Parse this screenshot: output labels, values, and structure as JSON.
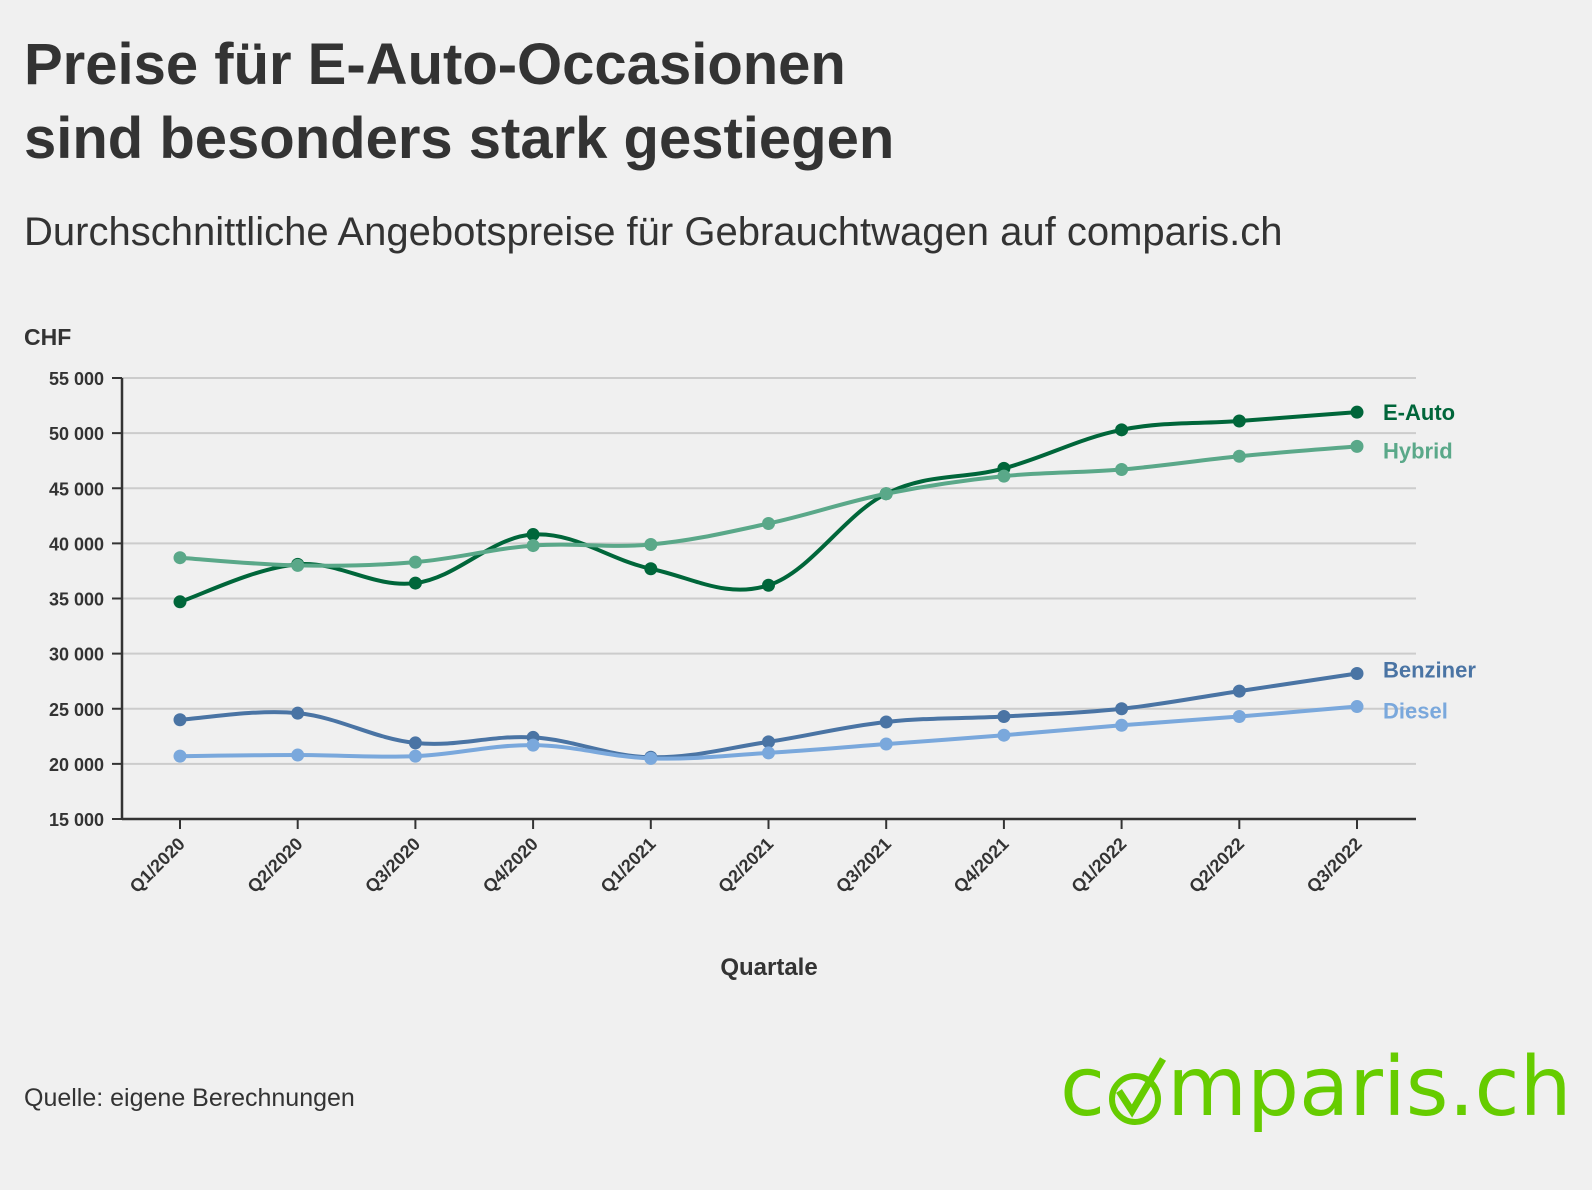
{
  "title_line1": "Preise für E-Auto-Occasionen",
  "title_line2": "sind besonders stark gestiegen",
  "subtitle": "Durchschnittliche Angebotspreise für Gebrauchtwagen auf comparis.ch",
  "source": "Quelle: eigene Berechnungen",
  "logo": {
    "text_left": "c",
    "text_right": "mparis.ch",
    "color": "#66cc00"
  },
  "chart_data": {
    "type": "line",
    "ylabel": "CHF",
    "xlabel": "Quartale",
    "ylim": [
      15000,
      55000
    ],
    "yticks": [
      15000,
      20000,
      25000,
      30000,
      35000,
      40000,
      45000,
      50000,
      55000
    ],
    "ytick_labels": [
      "15 000",
      "20 000",
      "25 000",
      "30 000",
      "35 000",
      "40 000",
      "45 000",
      "50 000",
      "55 000"
    ],
    "grid": true,
    "categories": [
      "Q1/2020",
      "Q2/2020",
      "Q3/2020",
      "Q4/2020",
      "Q1/2021",
      "Q2/2021",
      "Q3/2021",
      "Q4/2021",
      "Q1/2022",
      "Q2/2022",
      "Q3/2022"
    ],
    "series": [
      {
        "name": "E-Auto",
        "color": "#00663a",
        "values": [
          34700,
          38100,
          36400,
          40800,
          37700,
          36200,
          44500,
          46800,
          50300,
          51100,
          51900
        ]
      },
      {
        "name": "Hybrid",
        "color": "#5aa889",
        "values": [
          38700,
          38000,
          38300,
          39800,
          39900,
          41800,
          44500,
          46100,
          46700,
          47900,
          48800
        ]
      },
      {
        "name": "Benziner",
        "color": "#4a74a4",
        "values": [
          24000,
          24600,
          21900,
          22400,
          20600,
          22000,
          23800,
          24300,
          25000,
          26600,
          28200
        ]
      },
      {
        "name": "Diesel",
        "color": "#7aa8dc",
        "values": [
          20700,
          20800,
          20700,
          21700,
          20500,
          21000,
          21800,
          22600,
          23500,
          24300,
          25200
        ]
      }
    ]
  }
}
